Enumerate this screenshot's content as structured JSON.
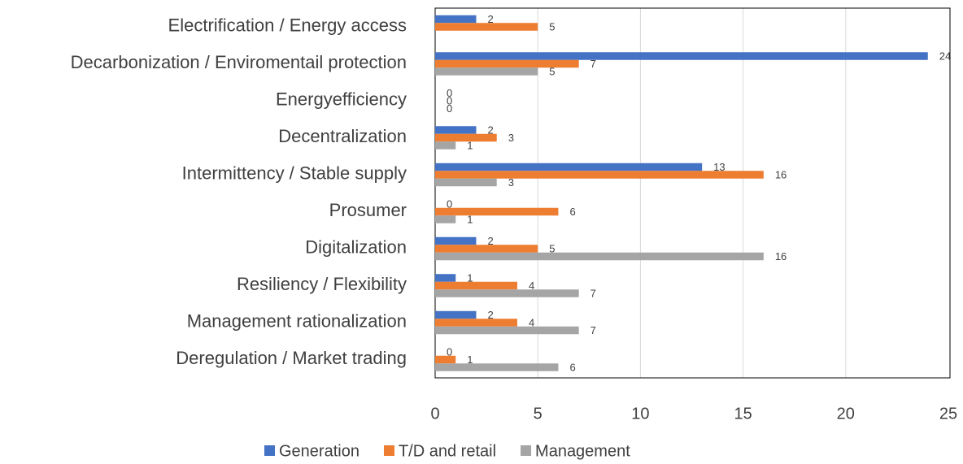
{
  "chart_data": {
    "type": "hbar",
    "categories": [
      "Electrification / Energy access",
      "Decarbonization / Enviromentail protection",
      "Energyefficiency",
      "Decentralization",
      "Intermittency / Stable supply",
      "Prosumer",
      "Digitalization",
      "Resiliency / Flexibility",
      "Management rationalization",
      "Deregulation / Market trading"
    ],
    "series": [
      {
        "name": "Generation",
        "color": "#4472c4",
        "values": [
          2,
          24,
          0,
          2,
          13,
          0,
          2,
          1,
          2,
          0
        ]
      },
      {
        "name": "T/D and retail",
        "color": "#ed7d31",
        "values": [
          5,
          7,
          0,
          3,
          16,
          6,
          5,
          4,
          4,
          1
        ]
      },
      {
        "name": "Management",
        "color": "#a5a5a5",
        "values": [
          null,
          5,
          0,
          1,
          3,
          1,
          16,
          7,
          7,
          6
        ]
      }
    ],
    "xlim": [
      0,
      25
    ],
    "xticks": [
      0,
      5,
      10,
      15,
      20,
      25
    ],
    "grid": true,
    "legend": "bottom"
  }
}
